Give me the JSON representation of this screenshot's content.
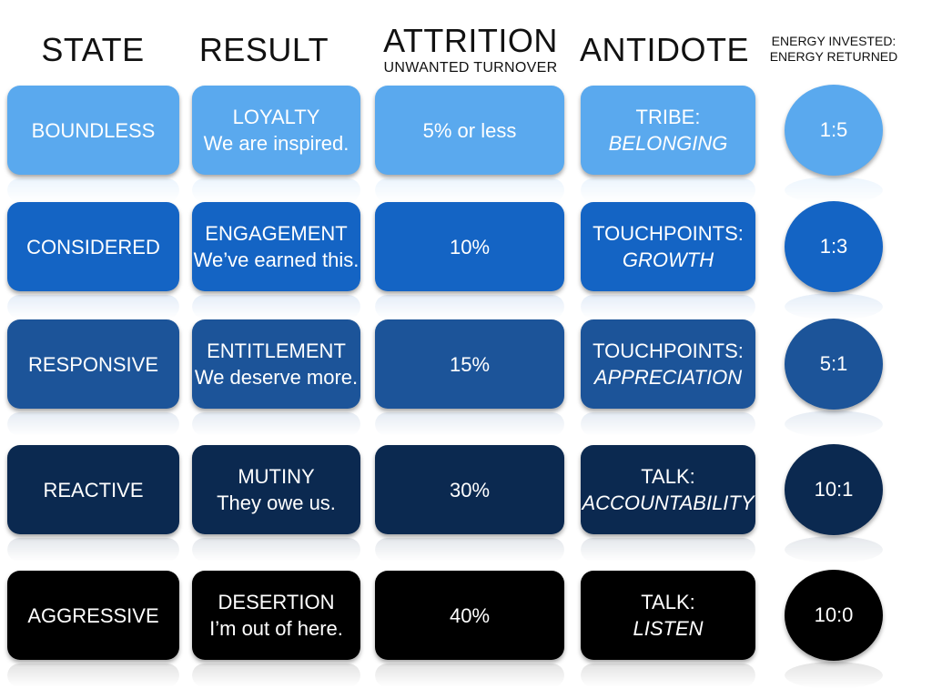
{
  "headers": {
    "state": "STATE",
    "result": "RESULT",
    "attrition": "ATTRITION",
    "attrition_sub": "UNWANTED TURNOVER",
    "antidote": "ANTIDOTE",
    "energy_line1": "ENERGY INVESTED:",
    "energy_line2": "ENERGY RETURNED"
  },
  "colors": {
    "row1": "#5aa9ee",
    "row2": "#1464c4",
    "row3": "#1c5499",
    "row4": "#0b2950",
    "row5": "#000000"
  },
  "rows": [
    {
      "state": "BOUNDLESS",
      "result_title": "LOYALTY",
      "result_quote": "We are inspired.",
      "attrition": "5% or less",
      "antidote_title": "TRIBE:",
      "antidote_sub": "BELONGING",
      "ratio": "1:5"
    },
    {
      "state": "CONSIDERED",
      "result_title": "ENGAGEMENT",
      "result_quote": "We’ve earned this.",
      "attrition": "10%",
      "antidote_title": "TOUCHPOINTS:",
      "antidote_sub": "GROWTH",
      "ratio": "1:3"
    },
    {
      "state": "RESPONSIVE",
      "result_title": "ENTITLEMENT",
      "result_quote": "We deserve more.",
      "attrition": "15%",
      "antidote_title": "TOUCHPOINTS:",
      "antidote_sub": "APPRECIATION",
      "ratio": "5:1"
    },
    {
      "state": "REACTIVE",
      "result_title": "MUTINY",
      "result_quote": "They owe us.",
      "attrition": "30%",
      "antidote_title": "TALK:",
      "antidote_sub": "ACCOUNTABILITY",
      "ratio": "10:1"
    },
    {
      "state": "AGGRESSIVE",
      "result_title": "DESERTION",
      "result_quote": "I’m out of here.",
      "attrition": "40%",
      "antidote_title": "TALK:",
      "antidote_sub": "LISTEN",
      "ratio": "10:0"
    }
  ]
}
